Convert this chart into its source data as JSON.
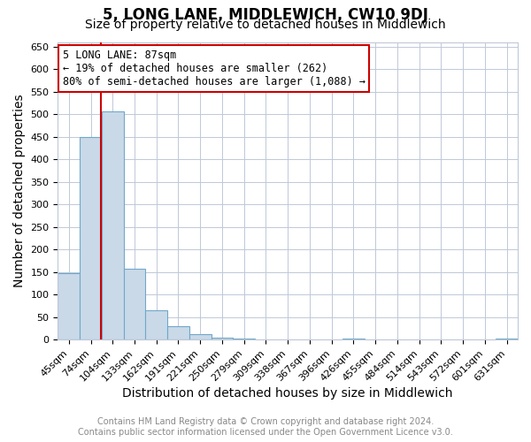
{
  "title": "5, LONG LANE, MIDDLEWICH, CW10 9DJ",
  "subtitle": "Size of property relative to detached houses in Middlewich",
  "xlabel": "Distribution of detached houses by size in Middlewich",
  "ylabel": "Number of detached properties",
  "footer_line1": "Contains HM Land Registry data © Crown copyright and database right 2024.",
  "footer_line2": "Contains public sector information licensed under the Open Government Licence v3.0.",
  "bin_labels": [
    "45sqm",
    "74sqm",
    "104sqm",
    "133sqm",
    "162sqm",
    "191sqm",
    "221sqm",
    "250sqm",
    "279sqm",
    "309sqm",
    "338sqm",
    "367sqm",
    "396sqm",
    "426sqm",
    "455sqm",
    "484sqm",
    "514sqm",
    "543sqm",
    "572sqm",
    "601sqm",
    "631sqm"
  ],
  "bar_heights": [
    148,
    450,
    507,
    158,
    65,
    30,
    12,
    5,
    3,
    0,
    0,
    0,
    0,
    2,
    0,
    0,
    0,
    0,
    0,
    0,
    3
  ],
  "bar_color": "#c9d9e8",
  "bar_edgecolor": "#6fa8c9",
  "redline_x": 1.47,
  "annotation_title": "5 LONG LANE: 87sqm",
  "annotation_line1": "← 19% of detached houses are smaller (262)",
  "annotation_line2": "80% of semi-detached houses are larger (1,088) →",
  "annotation_box_color": "#ffffff",
  "annotation_border_color": "#cc0000",
  "redline_color": "#cc0000",
  "ylim": [
    0,
    660
  ],
  "yticks": [
    0,
    50,
    100,
    150,
    200,
    250,
    300,
    350,
    400,
    450,
    500,
    550,
    600,
    650
  ],
  "background_color": "#ffffff",
  "grid_color": "#c0c8d8",
  "title_fontsize": 12,
  "subtitle_fontsize": 10,
  "axis_label_fontsize": 10,
  "tick_fontsize": 8,
  "footer_fontsize": 7,
  "annotation_fontsize": 8.5
}
